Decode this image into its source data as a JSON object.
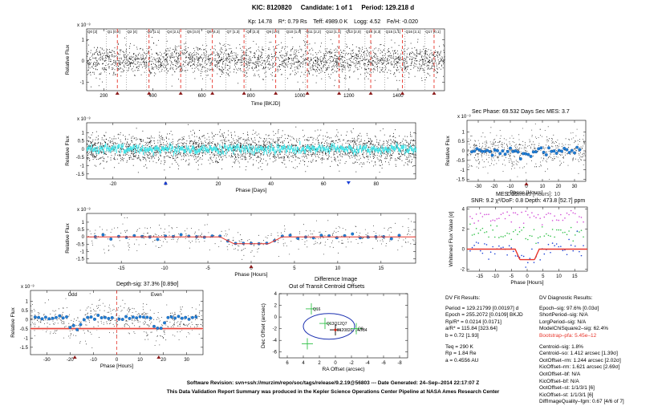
{
  "header": {
    "kic": "KIC: 8120820",
    "candidate": "Candidate: 1 of 1",
    "period": "Period: 129.218 d"
  },
  "star_params": {
    "kp": "Kp: 14.78",
    "rstar": "R*: 0.79 Rs",
    "teff": "Teff: 4989.0 K",
    "logg": "Logg: 4.52",
    "feh": "Fe/H: -0.020"
  },
  "colors": {
    "flux": "#111111",
    "binned": "#1f7fd6",
    "fit": "#e8342a",
    "cyan": "#3ee6ea",
    "magenta": "#d24bd6",
    "green": "#33c24a",
    "transit_marker": "#8b1a1a"
  },
  "chart_data": [
    {
      "id": "full_lc",
      "type": "scatter",
      "title": "",
      "xlabel": "Time [BKJD]",
      "ylabel": "Relative Flux",
      "yscale_label": "x 10⁻³",
      "xlim": [
        130,
        1590
      ],
      "ylim": [
        -1.4,
        1.5
      ],
      "x_ticks": [
        200,
        400,
        600,
        800,
        1000,
        1200,
        1400
      ],
      "y_ticks": [
        1,
        0,
        -1
      ],
      "transit_times": [
        255.2,
        384.4,
        513.6,
        642.8,
        772.0,
        901.3,
        1030.5,
        1159.7,
        1288.9,
        1418.1,
        1547.3
      ],
      "quarter_labels": [
        "Q0",
        "Q1",
        "Q2",
        "Q3",
        "Q4",
        "Q5",
        "Q6",
        "Q7",
        "Q8",
        "Q9",
        "Q10",
        "Q11",
        "Q12",
        "Q13",
        "Q14",
        "Q15",
        "Q16",
        "Q17"
      ],
      "segment_labels": [
        "[2]",
        "[0,2]",
        "[4]",
        "[1.1]",
        "[2,1]",
        "[3,0]",
        "[4,3]",
        "[1,3]",
        "[2,3]",
        "[1,0]",
        "[1,0]",
        "[2,2]",
        "[1,1]",
        "[2,0]",
        "[4,3]",
        "[1,1]",
        "[2,1]",
        "[0,1]"
      ]
    },
    {
      "id": "phased_days",
      "type": "scatter",
      "xlabel": "Phase [Days]",
      "ylabel": "Relative Flux",
      "yscale_label": "x 10⁻³",
      "xlim": [
        -30,
        95
      ],
      "ylim": [
        -1.8,
        1.6
      ],
      "x_ticks": [
        -20,
        0,
        20,
        40,
        60,
        80
      ],
      "y_ticks": [
        1,
        0.5,
        0,
        -0.5,
        -1,
        -1.5
      ]
    },
    {
      "id": "secondary",
      "type": "scatter",
      "title": "Sec Phase: 69.532 Days   Sec MES: 3.7",
      "xlabel": "Phase [Hours]",
      "ylabel": "Relative Flux",
      "yscale_label": "x 10⁻³",
      "xlim": [
        -37,
        37
      ],
      "ylim": [
        -1.6,
        1.6
      ],
      "x_ticks": [
        -30,
        -20,
        -10,
        0,
        10,
        20,
        30
      ],
      "y_ticks": [
        1,
        0.5,
        0,
        -0.5,
        -1,
        -1.5
      ],
      "overlap_label": "MES: 10"
    },
    {
      "id": "phased_hours",
      "type": "scatter",
      "xlabel": "Phase [Hours]",
      "ylabel": "Relative Flux",
      "yscale_label": "x 10⁻³",
      "xlim": [
        -19,
        19
      ],
      "ylim": [
        -1.8,
        1.6
      ],
      "x_ticks": [
        -15,
        -10,
        -5,
        0,
        5,
        10,
        15
      ],
      "y_ticks": [
        1,
        0.5,
        0,
        -0.5,
        -1,
        -1.5
      ],
      "transit_depth": 0.4738,
      "transit_half_width_hours": 3.2
    },
    {
      "id": "whitened",
      "type": "scatter",
      "title_line1": "Durations [Hours]: 10",
      "title_line2": "SNR: 9.2   χ²/DoF: 0.8   Depth: 473.8 [52.7] ppm",
      "xlabel": "Phase [Hours]",
      "ylabel": "Whitened Flux Value [σ]",
      "xlim": [
        -19,
        19
      ],
      "ylim": [
        -2.2,
        4.2
      ],
      "x_ticks": [
        -15,
        -10,
        -5,
        0,
        5,
        10,
        15
      ],
      "y_ticks": [
        4,
        2,
        0,
        -2
      ]
    },
    {
      "id": "odd_even",
      "type": "scatter",
      "title": "Depth-sig: 37.3% [0.89σ]",
      "odd_label": "Odd",
      "even_label": "Even",
      "xlabel": "Phase [Hours]",
      "ylabel": "Relative Flux",
      "yscale_label": "x 10⁻³",
      "xlim": [
        -37,
        37
      ],
      "ylim": [
        -1.9,
        1.6
      ],
      "x_ticks": [
        -30,
        -20,
        -10,
        0,
        10,
        20,
        30
      ],
      "y_ticks": [
        1,
        0.5,
        0,
        -0.5,
        -1,
        -1.5
      ]
    },
    {
      "id": "centroid",
      "type": "scatter",
      "title1": "Difference Image",
      "title2": "Out of Transit Centroid Offsets",
      "xlabel": "RA Offset (arcsec)",
      "ylabel": "Dec Offset (arcsec)",
      "xlim": [
        7,
        -9
      ],
      "ylim": [
        -7,
        4
      ],
      "x_ticks": [
        6,
        4,
        2,
        0,
        -2,
        -4,
        -6,
        -8
      ],
      "y_ticks": [
        4,
        2,
        0,
        -2,
        -4,
        -6
      ],
      "points": [
        {
          "label": "Q16",
          "x": 3.0,
          "y": 1.4
        },
        {
          "label": "Q13Q12Q7",
          "x": 1.3,
          "y": -1.1
        },
        {
          "label": "8120820, 14.784",
          "x": 0.0,
          "y": -2.2
        },
        {
          "label": "Q8",
          "x": -2.6,
          "y": -2.0
        },
        {
          "label": "",
          "x": 3.5,
          "y": -4.6
        }
      ]
    }
  ],
  "dv_fit": {
    "title": "DV Fit Results:",
    "lines": [
      "Period = 129.21799 [0.00197] d",
      "Epoch = 255.2072 [0.0109] BKJD",
      "Rp/R* = 0.0214 [0.0171]",
      "a/R* = 115.84 [323.64]",
      "b = 0.72 [1.93]"
    ],
    "lines2": [
      "Teq = 290 K",
      "Rp = 1.84 Re",
      "a = 0.4556 AU"
    ]
  },
  "dv_diag": {
    "title": "DV Diagnostic Results:",
    "lines": [
      "Epoch–sig: 97.6% [0.03σ]",
      "ShortPeriod–sig: N/A",
      "LorgPeriod–sig: N/A",
      "ModelChiSquare2–sig: 62.4%"
    ],
    "red_line": "Bootstrap–pfa: 5.45e–12",
    "lines2": [
      "Centroid–sig: 1.8%",
      "Centroid–so: 1.412 arcsec [1.39σ]",
      "OotOffset–rm: 1.244 arcsec [2.02σ]",
      "KicOffset–rm: 1.621 arcsec [2.69σ]",
      "OotOffset–bf: N/A",
      "KicOffset–bf: N/A",
      "OotOffset–st: 1/1/3/1 [6]",
      "KicOffset–st: 1/1/3/1 [6]",
      "DiffImageQuality–fgm: 0.67 [4/6 of 7]"
    ]
  },
  "footer": {
    "line1": "Software Revision: svn+ssh://murzim/repo/soc/tags/release/9.2.19@56803   ---   Date Generated: 24–Sep–2014 22:17:07 Z",
    "line2": "This Data Validation Report Summary was produced in the Kepler Science Operations Center Pipeline at NASA Ames Research Center"
  }
}
